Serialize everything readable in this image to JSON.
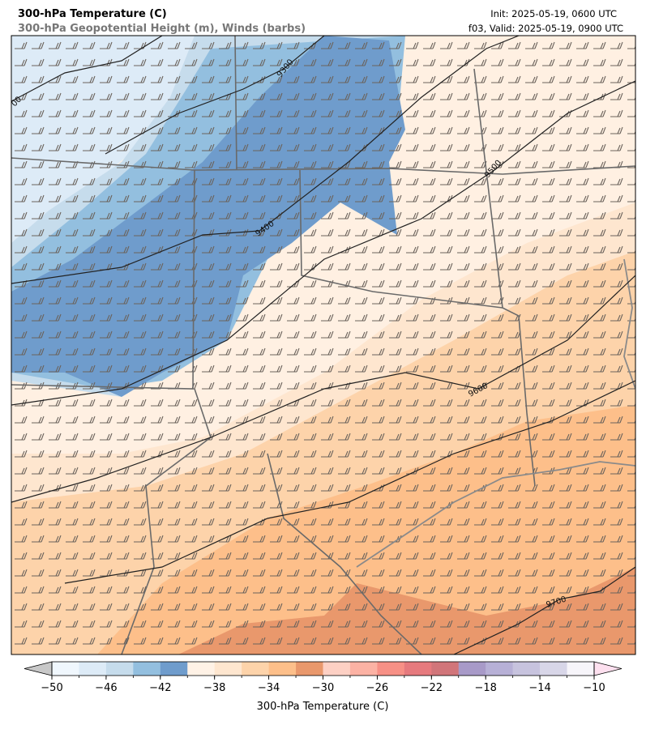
{
  "header": {
    "title": "300-hPa Temperature (C)",
    "subtitle": "300-hPa Geopotential Height (m), Winds (barbs)",
    "init": "Init: 2025-05-19, 0600 UTC",
    "valid": "f03, Valid: 2025-05-19, 0900 UTC"
  },
  "contour_labels": [
    "00",
    "9300",
    "9400",
    "9500",
    "9600",
    "9700"
  ],
  "colorbar": {
    "label": "300-hPa Temperature (C)",
    "lim": [
      -50,
      -10
    ],
    "ticks": [
      {
        "value": -50,
        "label": "−50"
      },
      {
        "value": -46,
        "label": "−46"
      },
      {
        "value": -42,
        "label": "−42"
      },
      {
        "value": -38,
        "label": "−38"
      },
      {
        "value": -34,
        "label": "−34"
      },
      {
        "value": -30,
        "label": "−30"
      },
      {
        "value": -26,
        "label": "−26"
      },
      {
        "value": -22,
        "label": "−22"
      },
      {
        "value": -18,
        "label": "−18"
      },
      {
        "value": -14,
        "label": "−14"
      },
      {
        "value": -10,
        "label": "−10"
      }
    ],
    "colors": [
      "#f0f7fd",
      "#ddebf7",
      "#c6dcec",
      "#93bfdf",
      "#6f9ccc",
      "#fff2e6",
      "#fee6cf",
      "#fdd3aa",
      "#fdbf8a",
      "#e9986c",
      "#fdd0c4",
      "#fcb2a4",
      "#f79086",
      "#e67a7e",
      "#d1757a",
      "#a89ac8",
      "#b7b0d6",
      "#c7c3de",
      "#d8d6e8",
      "#f7f5fa"
    ],
    "under_color": "#c8c8c8",
    "over_color": "#fde0ef"
  }
}
